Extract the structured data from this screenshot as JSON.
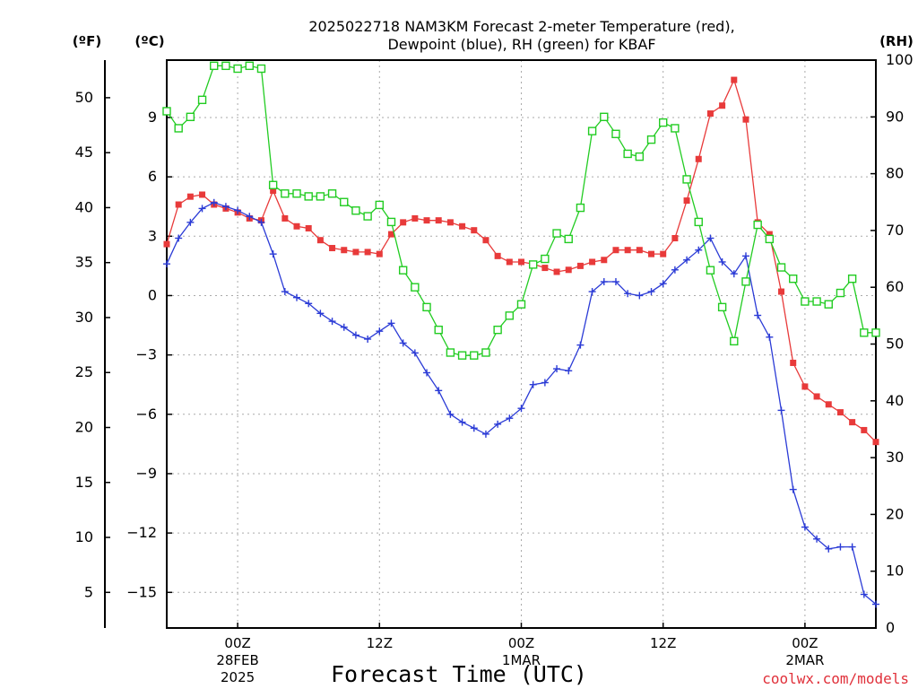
{
  "chart_data": {
    "type": "line",
    "title_line1": "2025022718 NAM3KM Forecast 2-meter Temperature (red),",
    "title_line2": "Dewpoint (blue), RH (green) for KBAF",
    "xlabel": "Forecast Time (UTC)",
    "credit": "coolwx.com/models",
    "left_outer_axis_label": "(ºF)",
    "left_inner_axis_label": "(ºC)",
    "right_axis_label": "(RH)",
    "x_unit": "forecast hour",
    "xlim": [
      0,
      60
    ],
    "x_ticks": [
      {
        "x": 6,
        "label": "00Z",
        "sub1": "28FEB",
        "sub2": "2025"
      },
      {
        "x": 18,
        "label": "12Z",
        "sub1": "",
        "sub2": ""
      },
      {
        "x": 30,
        "label": "00Z",
        "sub1": "1MAR",
        "sub2": ""
      },
      {
        "x": 42,
        "label": "12Z",
        "sub1": "",
        "sub2": ""
      },
      {
        "x": 54,
        "label": "00Z",
        "sub1": "2MAR",
        "sub2": ""
      }
    ],
    "ylim_celsius": [
      -16.8,
      11.9
    ],
    "y_ticks_celsius": [
      9,
      6,
      3,
      0,
      -3,
      -6,
      -9,
      -12,
      -15
    ],
    "y_tick_labels_celsius": [
      "9",
      "6",
      "3",
      "0",
      "−3",
      "−6",
      "−9",
      "−12",
      "−15"
    ],
    "y_ticks_fahrenheit": [
      50,
      45,
      40,
      35,
      30,
      25,
      20,
      15,
      10,
      5
    ],
    "ylim_rh": [
      0,
      100
    ],
    "y_ticks_rh": [
      100,
      90,
      80,
      70,
      60,
      50,
      40,
      30,
      20,
      10,
      0
    ],
    "grid": true,
    "colors": {
      "temperature": "#e83a3a",
      "dewpoint": "#2b3bd6",
      "rh": "#22cc22",
      "grid": "#aaaaaa",
      "credit": "#e0303a"
    },
    "series": [
      {
        "key": "temperature",
        "marker": "filled-square",
        "x": [
          0,
          1,
          2,
          3,
          4,
          5,
          6,
          7,
          8,
          9,
          10,
          11,
          12,
          13,
          14,
          15,
          16,
          17,
          18,
          19,
          20,
          21,
          22,
          23,
          24,
          25,
          26,
          27,
          28,
          29,
          30,
          31,
          32,
          33,
          34,
          35,
          36,
          37,
          38,
          39,
          40,
          41,
          42,
          43,
          44,
          45,
          46,
          47,
          48,
          49,
          50,
          51,
          52,
          53,
          54,
          55,
          56,
          57,
          58,
          59,
          60
        ],
        "values": [
          2.6,
          4.6,
          5.0,
          5.1,
          4.6,
          4.4,
          4.2,
          3.9,
          3.8,
          5.3,
          3.9,
          3.5,
          3.4,
          2.8,
          2.4,
          2.3,
          2.2,
          2.2,
          2.1,
          3.1,
          3.7,
          3.9,
          3.8,
          3.8,
          3.7,
          3.5,
          3.3,
          2.8,
          2.0,
          1.7,
          1.7,
          1.6,
          1.4,
          1.2,
          1.3,
          1.5,
          1.7,
          1.8,
          2.3,
          2.3,
          2.3,
          2.1,
          2.1,
          2.9,
          4.8,
          6.9,
          9.2,
          9.6,
          10.9,
          8.9,
          3.7,
          3.1,
          0.2,
          -3.4,
          -4.6,
          -5.1,
          -5.5,
          -5.9,
          -6.4,
          -6.8,
          -7.4
        ]
      },
      {
        "key": "dewpoint",
        "marker": "plus",
        "x": [
          0,
          1,
          2,
          3,
          4,
          5,
          6,
          7,
          8,
          9,
          10,
          11,
          12,
          13,
          14,
          15,
          16,
          17,
          18,
          19,
          20,
          21,
          22,
          23,
          24,
          25,
          26,
          27,
          28,
          29,
          30,
          31,
          32,
          33,
          34,
          35,
          36,
          37,
          38,
          39,
          40,
          41,
          42,
          43,
          44,
          45,
          46,
          47,
          48,
          49,
          50,
          51,
          52,
          53,
          54,
          55,
          56,
          57,
          58,
          59,
          60
        ],
        "values": [
          1.6,
          2.9,
          3.7,
          4.4,
          4.7,
          4.5,
          4.3,
          4.0,
          3.7,
          2.1,
          0.2,
          -0.1,
          -0.4,
          -0.9,
          -1.3,
          -1.6,
          -2.0,
          -2.2,
          -1.8,
          -1.4,
          -2.4,
          -2.9,
          -3.9,
          -4.8,
          -6.0,
          -6.4,
          -6.7,
          -7.0,
          -6.5,
          -6.2,
          -5.7,
          -4.5,
          -4.4,
          -3.7,
          -3.8,
          -2.5,
          0.2,
          0.7,
          0.7,
          0.1,
          0.0,
          0.2,
          0.6,
          1.3,
          1.8,
          2.3,
          2.9,
          1.7,
          1.1,
          2.0,
          -1.0,
          -2.1,
          -5.8,
          -9.8,
          -11.7,
          -12.3,
          -12.8,
          -12.7,
          -12.7,
          -15.1,
          -15.6
        ]
      },
      {
        "key": "rh",
        "marker": "open-square",
        "x": [
          0,
          1,
          2,
          3,
          4,
          5,
          6,
          7,
          8,
          9,
          10,
          11,
          12,
          13,
          14,
          15,
          16,
          17,
          18,
          19,
          20,
          21,
          22,
          23,
          24,
          25,
          26,
          27,
          28,
          29,
          30,
          31,
          32,
          33,
          34,
          35,
          36,
          37,
          38,
          39,
          40,
          41,
          42,
          43,
          44,
          45,
          46,
          47,
          48,
          49,
          50,
          51,
          52,
          53,
          54,
          55,
          56,
          57,
          58,
          59,
          60
        ],
        "values": [
          91,
          88,
          90,
          93,
          99,
          99,
          98.5,
          99,
          98.5,
          78,
          76.5,
          76.5,
          76,
          76,
          76.5,
          75,
          73.5,
          72.5,
          74.5,
          71.5,
          63,
          60,
          56.5,
          52.5,
          48.5,
          48,
          48,
          48.5,
          52.5,
          55,
          57,
          64,
          65,
          69.5,
          68.5,
          74,
          87.5,
          90,
          87,
          83.5,
          83,
          86,
          89,
          88,
          79,
          71.5,
          63,
          56.5,
          50.5,
          61,
          71,
          68.5,
          63.5,
          61.5,
          57.5,
          57.5,
          57,
          59,
          61.5,
          52,
          52
        ]
      }
    ]
  }
}
